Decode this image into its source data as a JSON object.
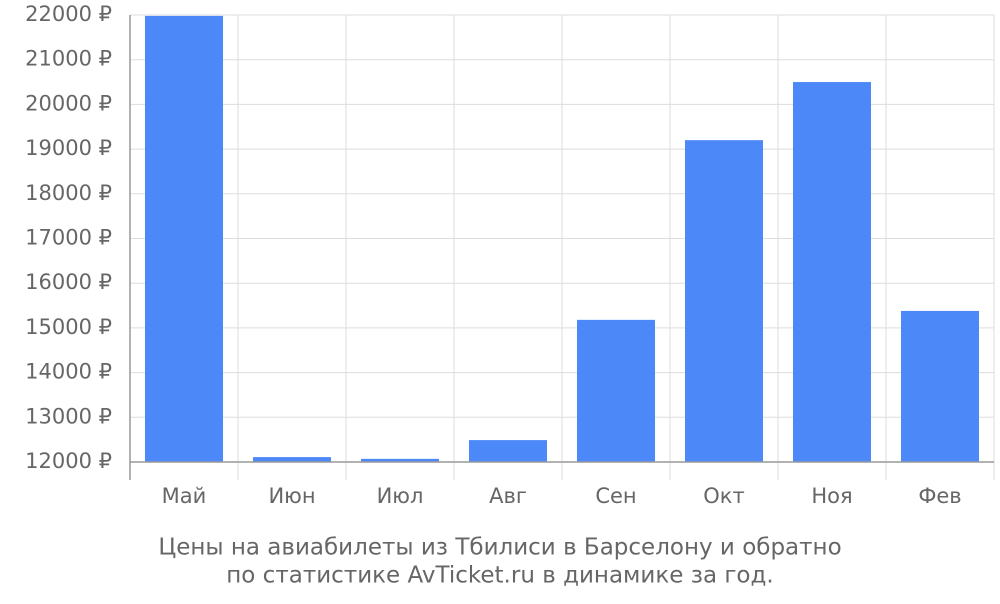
{
  "chart_data": {
    "type": "bar",
    "title": [
      "Цены на авиабилеты из Тбилиси в Барселону и обратно",
      "по статистике AvTicket.ru в динамике за год."
    ],
    "categories": [
      "Май",
      "Июн",
      "Июл",
      "Авг",
      "Сен",
      "Окт",
      "Ноя",
      "Фев"
    ],
    "values": [
      21980,
      12110,
      12070,
      12490,
      15180,
      19200,
      20500,
      15380
    ],
    "color": "#4d88f9",
    "ylim": [
      12000,
      22000
    ],
    "yticks": [
      {
        "value": 12000,
        "label": "12000 ₽"
      },
      {
        "value": 13000,
        "label": "13000 ₽"
      },
      {
        "value": 14000,
        "label": "14000 ₽"
      },
      {
        "value": 15000,
        "label": "15000 ₽"
      },
      {
        "value": 16000,
        "label": "16000 ₽"
      },
      {
        "value": 17000,
        "label": "17000 ₽"
      },
      {
        "value": 18000,
        "label": "18000 ₽"
      },
      {
        "value": 19000,
        "label": "19000 ₽"
      },
      {
        "value": 20000,
        "label": "20000 ₽"
      },
      {
        "value": 21000,
        "label": "21000 ₽"
      },
      {
        "value": 22000,
        "label": "22000 ₽"
      }
    ],
    "grid": true
  }
}
